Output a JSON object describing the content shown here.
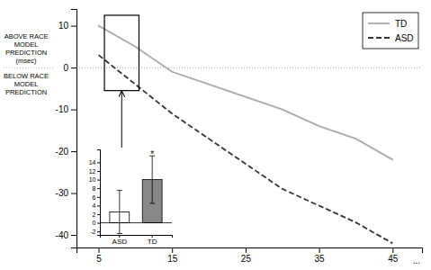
{
  "chart_data": [
    {
      "type": "line",
      "x": [
        5,
        10,
        15,
        20,
        25,
        30,
        35,
        40,
        45
      ],
      "series": [
        {
          "name": "TD",
          "color": "#aaaaaa",
          "line_style": "solid",
          "values": [
            10,
            5,
            -1,
            -4,
            -7,
            -10,
            -14,
            -17,
            -22
          ]
        },
        {
          "name": "ASD",
          "color": "#333333",
          "line_style": "dashed",
          "values": [
            3,
            -4,
            -11,
            -17,
            -23,
            -29,
            -33,
            -37,
            -42
          ]
        }
      ],
      "xlim": [
        2,
        49
      ],
      "xticks": [
        5,
        15,
        25,
        35,
        45
      ],
      "ylim": [
        -43,
        14
      ],
      "yticks": [
        -40,
        -30,
        -20,
        -10,
        0,
        10
      ],
      "ylabel_above": "ABOVE RACE\nMODEL\nPREDICTION\n(msec)",
      "ylabel_below": "BELOW RACE\nMODEL\nPREDICTION",
      "annotations": [
        "..."
      ],
      "hline": 0,
      "highlight": {
        "x": [
          5.8,
          10.5
        ],
        "y": [
          -5.5,
          12.5
        ]
      },
      "legend": "upper right"
    },
    {
      "type": "bar",
      "categories": [
        "ASD",
        "TD"
      ],
      "values": [
        2.5,
        10.0
      ],
      "errors": [
        5.0,
        5.5
      ],
      "colors": [
        "#ffffff",
        "#888888"
      ],
      "ylim": [
        -2.8,
        17
      ],
      "yticks": [
        -2,
        0,
        2,
        4,
        6,
        8,
        10,
        12,
        14
      ],
      "hline": 0,
      "annotations": [
        {
          "text": "*",
          "category": "TD"
        }
      ]
    }
  ]
}
